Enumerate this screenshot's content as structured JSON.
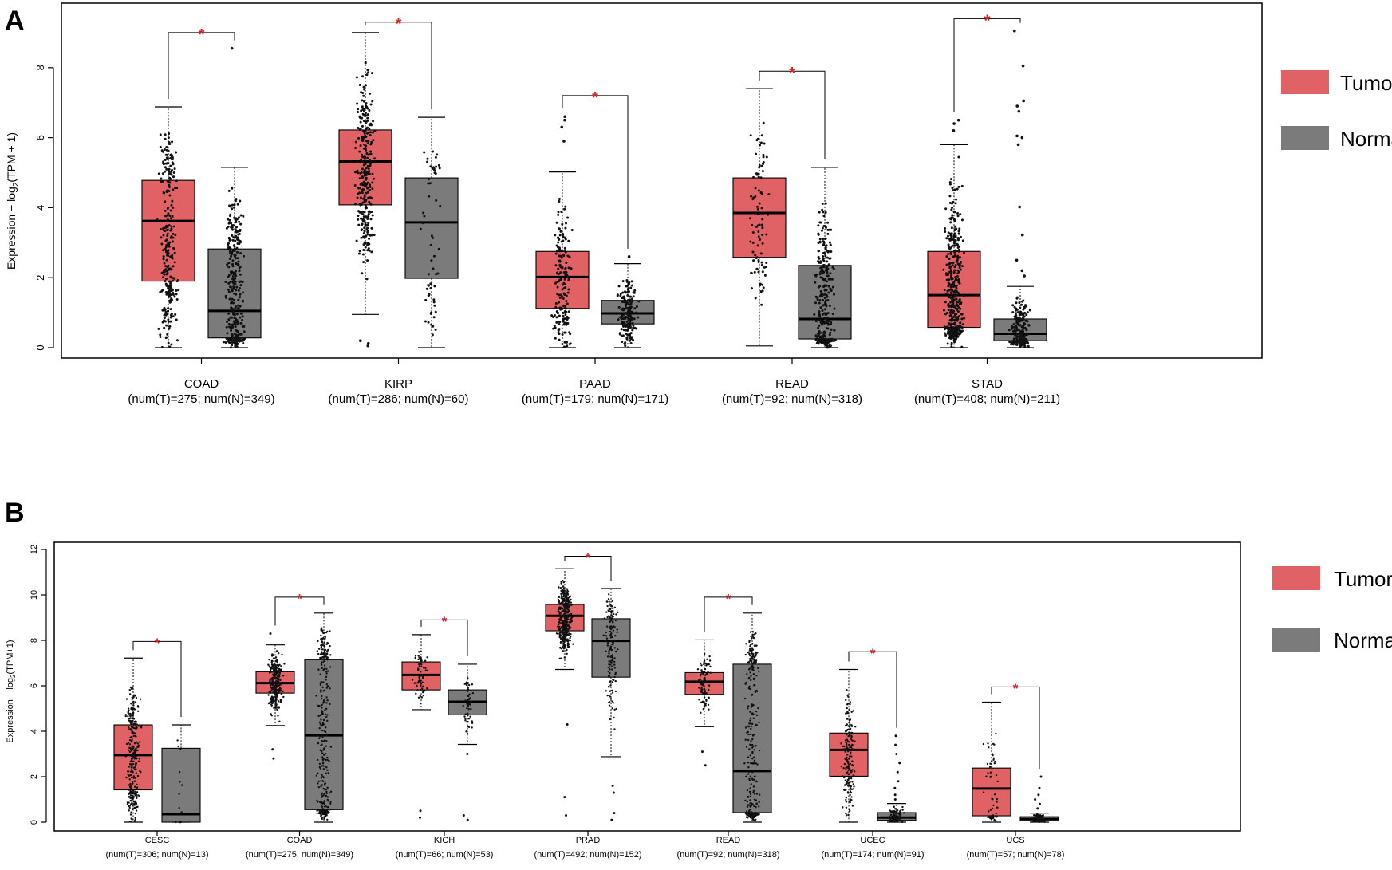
{
  "colors": {
    "tumor": "#e06264",
    "normal": "#7b7b7b",
    "significance": "#d62728",
    "points": "#111111"
  },
  "chart_data": [
    {
      "type": "box",
      "panel_label": "A",
      "ylabel_prefix": "Expression − log",
      "ylabel_sub": "2",
      "ylabel_suffix": "(TPM + 1)",
      "yticks": [
        0,
        2,
        4,
        6,
        8
      ],
      "ylim": [
        -0.3,
        9.9
      ],
      "legend": {
        "placement": "right",
        "entries": [
          {
            "label": "Tumor",
            "series": "tumor"
          },
          {
            "label": "Normal",
            "series": "normal"
          }
        ]
      },
      "groups": [
        {
          "name": "COAD",
          "counts": "(num(T)=275; num(N)=349)",
          "significance": "*",
          "bracket_y": 9.0,
          "tumor": {
            "n": 275,
            "q1": 1.9,
            "median": 3.62,
            "q3": 4.78,
            "wlo": 0.0,
            "whi": 6.88,
            "outliers": []
          },
          "normal": {
            "n": 349,
            "q1": 0.28,
            "median": 1.05,
            "q3": 2.82,
            "wlo": 0.0,
            "whi": 5.15,
            "outliers": [
              8.55
            ]
          }
        },
        {
          "name": "KIRP",
          "counts": "(num(T)=286; num(N)=60)",
          "significance": "*",
          "bracket_y": 9.3,
          "tumor": {
            "n": 286,
            "q1": 4.08,
            "median": 5.32,
            "q3": 6.22,
            "wlo": 0.95,
            "whi": 9.0,
            "outliers": [
              0.05,
              0.12,
              0.2
            ]
          },
          "normal": {
            "n": 60,
            "q1": 1.98,
            "median": 3.58,
            "q3": 4.85,
            "wlo": 0.0,
            "whi": 6.58,
            "outliers": []
          }
        },
        {
          "name": "PAAD",
          "counts": "(num(T)=179; num(N)=171)",
          "significance": "*",
          "bracket_y": 7.2,
          "tumor": {
            "n": 179,
            "q1": 1.12,
            "median": 2.02,
            "q3": 2.75,
            "wlo": 0.0,
            "whi": 5.02,
            "outliers": [
              6.5,
              6.6,
              6.3,
              5.9
            ]
          },
          "normal": {
            "n": 171,
            "q1": 0.68,
            "median": 0.98,
            "q3": 1.35,
            "wlo": 0.0,
            "whi": 2.4,
            "outliers": [
              2.6
            ]
          }
        },
        {
          "name": "READ",
          "counts": "(num(T)=92; num(N)=318)",
          "significance": "*",
          "bracket_y": 7.9,
          "tumor": {
            "n": 92,
            "q1": 2.58,
            "median": 3.85,
            "q3": 4.85,
            "wlo": 0.05,
            "whi": 7.4,
            "outliers": []
          },
          "normal": {
            "n": 318,
            "q1": 0.25,
            "median": 0.82,
            "q3": 2.35,
            "wlo": 0.0,
            "whi": 5.15,
            "outliers": []
          }
        },
        {
          "name": "STAD",
          "counts": "(num(T)=408; num(N)=211)",
          "significance": "*",
          "bracket_y": 9.4,
          "tumor": {
            "n": 408,
            "q1": 0.58,
            "median": 1.5,
            "q3": 2.75,
            "wlo": 0.0,
            "whi": 5.8,
            "outliers": [
              6.5,
              6.4,
              6.2
            ]
          },
          "normal": {
            "n": 211,
            "q1": 0.2,
            "median": 0.4,
            "q3": 0.82,
            "wlo": 0.0,
            "whi": 1.75,
            "outliers": [
              9.05,
              8.05,
              7.05,
              6.9,
              6.75,
              6.05,
              6.0,
              5.8,
              4.02,
              3.22,
              2.5,
              2.2,
              2.05
            ]
          }
        }
      ]
    },
    {
      "type": "box",
      "panel_label": "B",
      "ylabel_prefix": "Expression − log",
      "ylabel_sub": "2",
      "ylabel_suffix": "(TPM+1)",
      "yticks": [
        0,
        2,
        4,
        6,
        8,
        10,
        12
      ],
      "ylim": [
        -0.4,
        12.0
      ],
      "legend": {
        "placement": "right",
        "entries": [
          {
            "label": "Tumor",
            "series": "tumor"
          },
          {
            "label": "Normal",
            "series": "normal"
          }
        ]
      },
      "groups": [
        {
          "name": "CESC",
          "counts": "(num(T)=306; num(N)=13)",
          "significance": "*",
          "bracket_y": 7.95,
          "tumor": {
            "n": 306,
            "q1": 1.42,
            "median": 2.95,
            "q3": 4.28,
            "wlo": 0.0,
            "whi": 7.22,
            "outliers": []
          },
          "normal": {
            "n": 13,
            "q1": 0.0,
            "median": 0.35,
            "q3": 3.25,
            "wlo": 0.0,
            "whi": 4.28,
            "outliers": []
          }
        },
        {
          "name": "COAD",
          "counts": "(num(T)=275; num(N)=349)",
          "significance": "*",
          "bracket_y": 9.9,
          "tumor": {
            "n": 275,
            "q1": 5.68,
            "median": 6.12,
            "q3": 6.62,
            "wlo": 4.25,
            "whi": 7.8,
            "outliers": [
              2.8,
              3.2,
              8.3
            ]
          },
          "normal": {
            "n": 349,
            "q1": 0.55,
            "median": 3.82,
            "q3": 7.15,
            "wlo": 0.0,
            "whi": 9.2,
            "outliers": []
          }
        },
        {
          "name": "KICH",
          "counts": "(num(T)=66; num(N)=53)",
          "significance": "*",
          "bracket_y": 8.9,
          "tumor": {
            "n": 66,
            "q1": 5.82,
            "median": 6.48,
            "q3": 7.05,
            "wlo": 4.95,
            "whi": 8.25,
            "outliers": [
              0.2,
              0.5
            ]
          },
          "normal": {
            "n": 53,
            "q1": 4.72,
            "median": 5.3,
            "q3": 5.82,
            "wlo": 3.42,
            "whi": 6.95,
            "outliers": [
              0.1,
              0.3,
              3.0
            ]
          }
        },
        {
          "name": "PRAD",
          "counts": "(num(T)=492; num(N)=152)",
          "significance": "*",
          "bracket_y": 11.7,
          "tumor": {
            "n": 492,
            "q1": 8.42,
            "median": 9.08,
            "q3": 9.58,
            "wlo": 6.72,
            "whi": 11.15,
            "outliers": [
              0.3,
              1.1,
              4.3
            ]
          },
          "normal": {
            "n": 152,
            "q1": 6.38,
            "median": 7.98,
            "q3": 8.95,
            "wlo": 2.88,
            "whi": 10.28,
            "outliers": [
              0.1,
              0.4,
              1.3,
              1.6
            ]
          }
        },
        {
          "name": "READ",
          "counts": "(num(T)=92; num(N)=318)",
          "significance": "*",
          "bracket_y": 9.9,
          "tumor": {
            "n": 92,
            "q1": 5.62,
            "median": 6.18,
            "q3": 6.58,
            "wlo": 4.2,
            "whi": 8.02,
            "outliers": [
              2.5,
              3.1
            ]
          },
          "normal": {
            "n": 318,
            "q1": 0.42,
            "median": 2.25,
            "q3": 6.95,
            "wlo": 0.0,
            "whi": 9.2,
            "outliers": []
          }
        },
        {
          "name": "UCEC",
          "counts": "(num(T)=174; num(N)=91)",
          "significance": "*",
          "bracket_y": 7.5,
          "tumor": {
            "n": 174,
            "q1": 2.02,
            "median": 3.18,
            "q3": 3.92,
            "wlo": 0.0,
            "whi": 6.72,
            "outliers": []
          },
          "normal": {
            "n": 91,
            "q1": 0.08,
            "median": 0.2,
            "q3": 0.42,
            "wlo": 0.0,
            "whi": 0.82,
            "outliers": [
              1.0,
              1.2,
              1.5,
              1.8,
              2.2,
              2.6,
              3.0,
              3.4,
              3.8
            ]
          }
        },
        {
          "name": "UCS",
          "counts": "(num(T)=57; num(N)=78)",
          "significance": "*",
          "bracket_y": 5.95,
          "tumor": {
            "n": 57,
            "q1": 0.28,
            "median": 1.48,
            "q3": 2.38,
            "wlo": 0.0,
            "whi": 5.28,
            "outliers": []
          },
          "normal": {
            "n": 78,
            "q1": 0.06,
            "median": 0.14,
            "q3": 0.24,
            "wlo": 0.0,
            "whi": 0.4,
            "outliers": [
              0.6,
              0.8,
              1.0,
              1.2,
              1.5,
              2.0
            ]
          }
        }
      ]
    }
  ]
}
